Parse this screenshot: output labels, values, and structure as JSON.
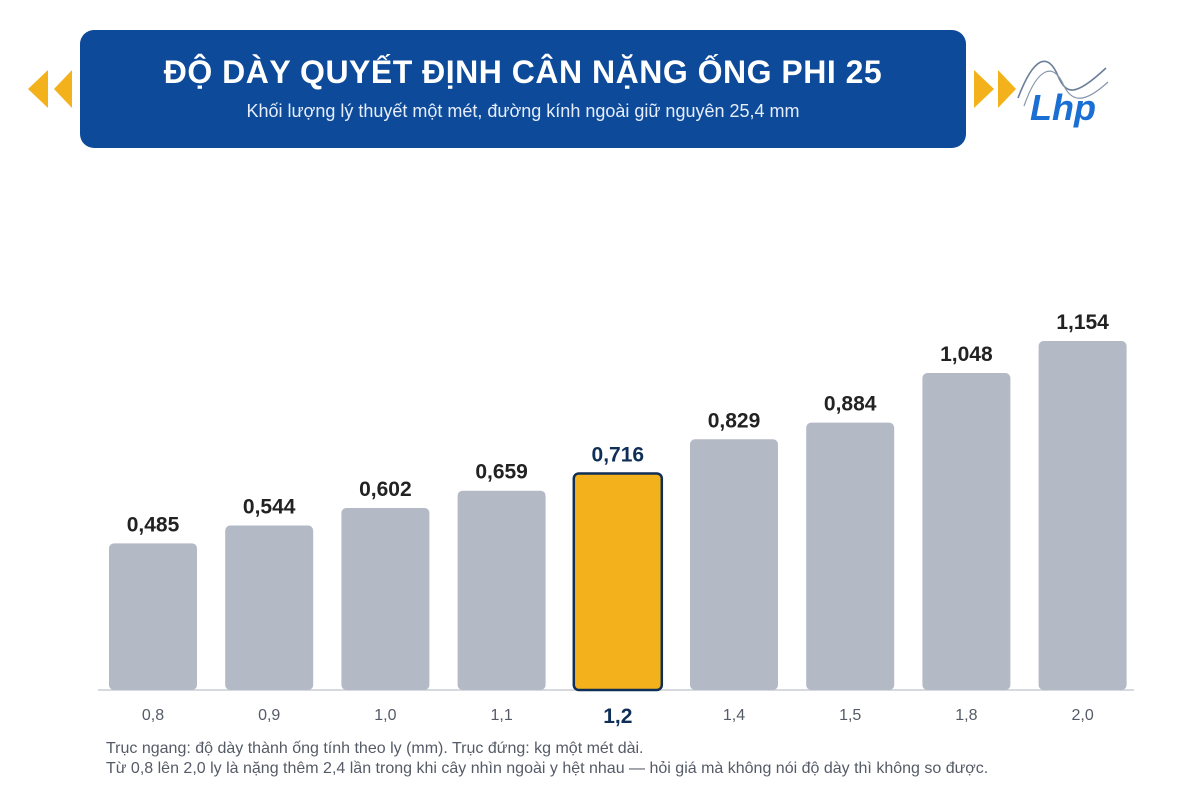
{
  "header": {
    "title": "ĐỘ DÀY QUYẾT ĐỊNH CÂN NẶNG ỐNG PHI 25",
    "subtitle": "Khối lượng lý thuyết một mét, đường kính ngoài giữ nguyên 25,4 mm"
  },
  "logo": {
    "text": "Lhp",
    "icon": "lhp-logo-icon"
  },
  "decor": {
    "accent": "#f3b21c",
    "banner": "#0d4a9a"
  },
  "chart_data": {
    "type": "bar",
    "categories": [
      "0,8",
      "0,9",
      "1,0",
      "1,1",
      "1,2",
      "1,4",
      "1,5",
      "1,8",
      "2,0"
    ],
    "values": [
      0.485,
      0.544,
      0.602,
      0.659,
      0.716,
      0.829,
      0.884,
      1.048,
      1.154
    ],
    "value_labels": [
      "0,485",
      "0,544",
      "0,602",
      "0,659",
      "0,716",
      "0,829",
      "0,884",
      "1,048",
      "1,154"
    ],
    "highlight_index": 4,
    "ylim": [
      0,
      1.154
    ],
    "grid": false,
    "colors": {
      "bar": "#b3b9c5",
      "highlight": "#f3b21c",
      "highlight_border": "#0f2f57",
      "label": "#222222",
      "highlight_label": "#0f2f57",
      "tick": "#555b66",
      "axis": "#c9ced6"
    }
  },
  "footnote": {
    "line1": "Trục ngang: độ dày thành ống tính theo ly (mm). Trục đứng: kg một mét dài.",
    "line2": "Từ 0,8 lên 2,0 ly là nặng thêm 2,4 lần trong khi cây nhìn ngoài y hệt nhau — hỏi giá mà không nói độ dày thì không so được."
  }
}
